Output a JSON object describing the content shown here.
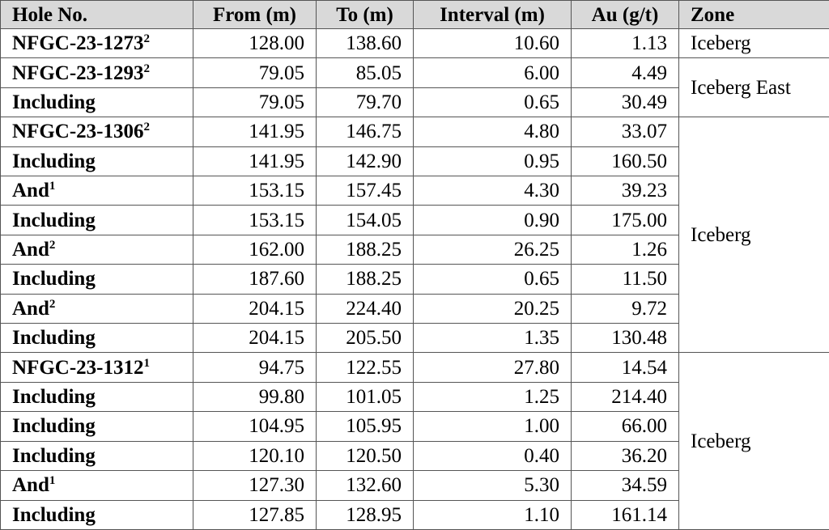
{
  "table": {
    "headers": [
      "Hole No.",
      "From (m)",
      "To (m)",
      "Interval (m)",
      "Au (g/t)",
      "Zone"
    ],
    "rows": [
      {
        "hole": "NFGC-23-1273",
        "note": "2",
        "from": "128.00",
        "to": "138.60",
        "interval": "10.60",
        "au": "1.13"
      },
      {
        "hole": "NFGC-23-1293",
        "note": "2",
        "from": "79.05",
        "to": "85.05",
        "interval": "6.00",
        "au": "4.49"
      },
      {
        "hole": "Including",
        "from": "79.05",
        "to": "79.70",
        "interval": "0.65",
        "au": "30.49"
      },
      {
        "hole": "NFGC-23-1306",
        "note": "2",
        "from": "141.95",
        "to": "146.75",
        "interval": "4.80",
        "au": "33.07"
      },
      {
        "hole": "Including",
        "from": "141.95",
        "to": "142.90",
        "interval": "0.95",
        "au": "160.50"
      },
      {
        "hole": "And",
        "note": "1",
        "from": "153.15",
        "to": "157.45",
        "interval": "4.30",
        "au": "39.23"
      },
      {
        "hole": "Including",
        "from": "153.15",
        "to": "154.05",
        "interval": "0.90",
        "au": "175.00"
      },
      {
        "hole": "And",
        "note": "2",
        "from": "162.00",
        "to": "188.25",
        "interval": "26.25",
        "au": "1.26"
      },
      {
        "hole": "Including",
        "from": "187.60",
        "to": "188.25",
        "interval": "0.65",
        "au": "11.50"
      },
      {
        "hole": "And",
        "note": "2",
        "from": "204.15",
        "to": "224.40",
        "interval": "20.25",
        "au": "9.72"
      },
      {
        "hole": "Including",
        "from": "204.15",
        "to": "205.50",
        "interval": "1.35",
        "au": "130.48"
      },
      {
        "hole": "NFGC-23-1312",
        "note": "1",
        "from": "94.75",
        "to": "122.55",
        "interval": "27.80",
        "au": "14.54"
      },
      {
        "hole": "Including",
        "from": "99.80",
        "to": "101.05",
        "interval": "1.25",
        "au": "214.40"
      },
      {
        "hole": "Including",
        "from": "104.95",
        "to": "105.95",
        "interval": "1.00",
        "au": "66.00"
      },
      {
        "hole": "Including",
        "from": "120.10",
        "to": "120.50",
        "interval": "0.40",
        "au": "36.20"
      },
      {
        "hole": "And",
        "note": "1",
        "from": "127.30",
        "to": "132.60",
        "interval": "5.30",
        "au": "34.59"
      },
      {
        "hole": "Including",
        "from": "127.85",
        "to": "128.95",
        "interval": "1.10",
        "au": "161.14"
      }
    ],
    "zones": [
      "Iceberg",
      "Iceberg East",
      "Iceberg",
      "Iceberg"
    ]
  }
}
